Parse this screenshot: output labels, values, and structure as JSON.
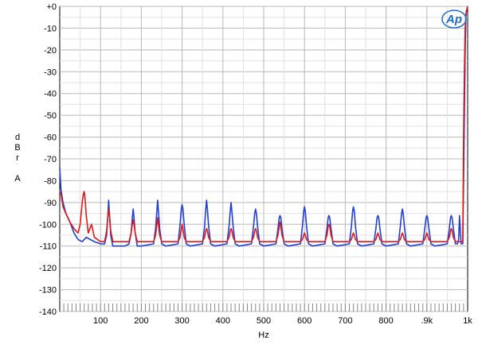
{
  "chart_data": {
    "type": "line",
    "title": "",
    "xlabel": "Hz",
    "ylabel": "dBr A",
    "ylabel_lines": [
      "d",
      "B",
      "r",
      "",
      "A"
    ],
    "xlim": [
      0,
      1000
    ],
    "ylim": [
      -140,
      0
    ],
    "grid": true,
    "logo": "Ap",
    "y_ticks": [
      0,
      -10,
      -20,
      -30,
      -40,
      -50,
      -60,
      -70,
      -80,
      -90,
      -100,
      -110,
      -120,
      -130,
      -140
    ],
    "y_tick_labels": [
      "+0",
      "-10",
      "-20",
      "-30",
      "-40",
      "-50",
      "-60",
      "-70",
      "-80",
      "-90",
      "-100",
      "-110",
      "-120",
      "-130",
      "-140"
    ],
    "x_ticks": [
      100,
      200,
      300,
      400,
      500,
      600,
      700,
      800,
      900,
      1000
    ],
    "x_tick_labels": [
      "100",
      "200",
      "300",
      "400",
      "500",
      "600",
      "700",
      "800",
      ".9k",
      "1k"
    ],
    "series": [
      {
        "color": "#1f3fd6",
        "x": [
          0,
          3,
          8,
          15,
          25,
          35,
          45,
          55,
          65,
          75,
          85,
          100,
          110,
          115,
          118,
          120,
          122,
          125,
          130,
          140,
          160,
          170,
          175,
          178,
          180,
          182,
          185,
          190,
          200,
          230,
          235,
          238,
          240,
          242,
          245,
          250,
          260,
          290,
          295,
          298,
          300,
          302,
          305,
          310,
          320,
          350,
          355,
          358,
          360,
          362,
          365,
          370,
          380,
          410,
          415,
          418,
          420,
          422,
          425,
          430,
          440,
          470,
          475,
          478,
          480,
          482,
          485,
          490,
          500,
          530,
          535,
          538,
          540,
          542,
          545,
          550,
          560,
          590,
          595,
          598,
          600,
          602,
          605,
          610,
          620,
          650,
          655,
          658,
          660,
          662,
          665,
          670,
          680,
          710,
          715,
          718,
          720,
          722,
          725,
          730,
          740,
          770,
          775,
          778,
          780,
          782,
          785,
          790,
          800,
          830,
          835,
          838,
          840,
          842,
          845,
          850,
          860,
          890,
          895,
          898,
          900,
          902,
          905,
          910,
          920,
          950,
          955,
          958,
          960,
          962,
          965,
          970,
          975,
          978,
          980,
          984,
          988,
          990,
          992,
          994,
          996,
          1000
        ],
        "y": [
          -74,
          -84,
          -90,
          -95,
          -99,
          -104,
          -107,
          -108,
          -106,
          -107,
          -108,
          -109,
          -109,
          -105,
          -96,
          -89,
          -96,
          -105,
          -110,
          -110,
          -110,
          -109,
          -104,
          -97,
          -93,
          -97,
          -104,
          -110,
          -110,
          -109,
          -102,
          -94,
          -89,
          -94,
          -102,
          -109,
          -110,
          -109,
          -100,
          -93,
          -91,
          -93,
          -100,
          -109,
          -110,
          -109,
          -101,
          -93,
          -89,
          -93,
          -101,
          -109,
          -110,
          -109,
          -101,
          -94,
          -90,
          -94,
          -101,
          -109,
          -110,
          -109,
          -101,
          -95,
          -93,
          -95,
          -101,
          -109,
          -110,
          -109,
          -102,
          -97,
          -96,
          -97,
          -102,
          -109,
          -110,
          -109,
          -101,
          -94,
          -92,
          -94,
          -101,
          -109,
          -110,
          -109,
          -102,
          -97,
          -96,
          -97,
          -102,
          -109,
          -110,
          -109,
          -101,
          -94,
          -92,
          -94,
          -101,
          -109,
          -110,
          -109,
          -102,
          -97,
          -96,
          -97,
          -102,
          -109,
          -110,
          -109,
          -101,
          -95,
          -93,
          -95,
          -101,
          -109,
          -110,
          -109,
          -102,
          -97,
          -96,
          -97,
          -102,
          -109,
          -110,
          -109,
          -102,
          -97,
          -96,
          -97,
          -102,
          -109,
          -109,
          -107,
          -96,
          -109,
          -109,
          -80,
          -50,
          -20,
          -3,
          0
        ]
      },
      {
        "color": "#e01818",
        "x": [
          0,
          3,
          8,
          15,
          25,
          35,
          45,
          50,
          55,
          58,
          60,
          62,
          65,
          70,
          78,
          85,
          100,
          110,
          115,
          118,
          120,
          122,
          125,
          130,
          140,
          160,
          170,
          175,
          178,
          180,
          182,
          185,
          190,
          200,
          230,
          235,
          238,
          240,
          242,
          245,
          250,
          260,
          290,
          295,
          298,
          300,
          302,
          305,
          310,
          320,
          350,
          355,
          358,
          360,
          362,
          365,
          370,
          380,
          410,
          415,
          418,
          420,
          422,
          425,
          430,
          440,
          470,
          475,
          478,
          480,
          482,
          485,
          490,
          500,
          530,
          535,
          538,
          540,
          542,
          545,
          550,
          560,
          590,
          595,
          598,
          600,
          602,
          605,
          610,
          620,
          650,
          655,
          658,
          660,
          662,
          665,
          670,
          680,
          710,
          715,
          718,
          720,
          722,
          725,
          730,
          740,
          770,
          775,
          778,
          780,
          782,
          785,
          790,
          800,
          830,
          835,
          838,
          840,
          842,
          845,
          850,
          860,
          890,
          895,
          898,
          900,
          902,
          905,
          910,
          920,
          950,
          955,
          958,
          960,
          962,
          965,
          970,
          975,
          980,
          984,
          988,
          990,
          992,
          994,
          996,
          1000
        ],
        "y": [
          -85,
          -86,
          -92,
          -95,
          -99,
          -102,
          -104,
          -100,
          -90,
          -86,
          -85,
          -88,
          -96,
          -104,
          -100,
          -106,
          -108,
          -108,
          -103,
          -96,
          -93,
          -96,
          -103,
          -108,
          -108,
          -108,
          -108,
          -104,
          -100,
          -98,
          -100,
          -104,
          -108,
          -108,
          -108,
          -105,
          -100,
          -97,
          -100,
          -105,
          -108,
          -108,
          -108,
          -106,
          -102,
          -100,
          -102,
          -106,
          -108,
          -108,
          -108,
          -106,
          -103,
          -102,
          -103,
          -106,
          -108,
          -108,
          -108,
          -106,
          -103,
          -102,
          -103,
          -106,
          -108,
          -108,
          -108,
          -106,
          -103,
          -102,
          -103,
          -106,
          -108,
          -108,
          -108,
          -105,
          -101,
          -99,
          -101,
          -105,
          -108,
          -108,
          -108,
          -107,
          -105,
          -104,
          -105,
          -107,
          -108,
          -108,
          -108,
          -105,
          -101,
          -100,
          -101,
          -105,
          -108,
          -108,
          -108,
          -107,
          -105,
          -104,
          -105,
          -107,
          -108,
          -108,
          -108,
          -107,
          -105,
          -104,
          -105,
          -107,
          -108,
          -108,
          -108,
          -107,
          -105,
          -104,
          -105,
          -107,
          -108,
          -108,
          -108,
          -107,
          -105,
          -104,
          -105,
          -107,
          -108,
          -108,
          -108,
          -106,
          -103,
          -102,
          -103,
          -106,
          -108,
          -108,
          -108,
          -108,
          -108,
          -60,
          -30,
          -10,
          -3,
          0
        ]
      }
    ]
  }
}
